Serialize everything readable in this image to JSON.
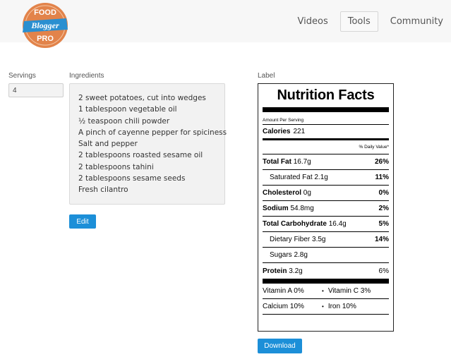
{
  "header": {
    "logo": {
      "line1": "FOOD",
      "line2": "Blogger",
      "line3": "PRO"
    },
    "nav": [
      {
        "label": "Videos",
        "active": false
      },
      {
        "label": "Tools",
        "active": true
      },
      {
        "label": "Community",
        "active": false
      }
    ]
  },
  "servings": {
    "label": "Servings",
    "value": "4"
  },
  "ingredients": {
    "label": "Ingredients",
    "items": [
      "2 sweet potatoes, cut into wedges",
      "1 tablespoon vegetable oil",
      "½ teaspoon chili powder",
      "A pinch of cayenne pepper for spiciness",
      "Salt and pepper",
      "2 tablespoons roasted sesame oil",
      "2 tablespoons tahini",
      "2 tablespoons sesame seeds",
      "Fresh cilantro"
    ],
    "edit_label": "Edit"
  },
  "label_section": {
    "label": "Label",
    "download_label": "Download"
  },
  "nutrition": {
    "title": "Nutrition Facts",
    "amount_per_serving": "Amount Per Serving",
    "calories_label": "Calories",
    "calories_value": "221",
    "daily_value_header": "% Daily Value*",
    "total_fat": {
      "label": "Total Fat",
      "amount": "16.7g",
      "dv": "26%"
    },
    "saturated_fat": {
      "label": "Saturated Fat",
      "amount": "2.1g",
      "dv": "11%"
    },
    "cholesterol": {
      "label": "Cholesterol",
      "amount": "0g",
      "dv": "0%"
    },
    "sodium": {
      "label": "Sodium",
      "amount": "54.8mg",
      "dv": "2%"
    },
    "total_carb": {
      "label": "Total Carbohydrate",
      "amount": "16.4g",
      "dv": "5%"
    },
    "dietary_fiber": {
      "label": "Dietary Fiber",
      "amount": "3.5g",
      "dv": "14%"
    },
    "sugars": {
      "label": "Sugars",
      "amount": "2.8g"
    },
    "protein": {
      "label": "Protein",
      "amount": "3.2g",
      "dv": "6%"
    },
    "vitamin_a": "Vitamin A 0%",
    "vitamin_c": "Vitamin C 3%",
    "calcium": "Calcium 10%",
    "iron": "Iron 10%",
    "bullet": "•"
  },
  "colors": {
    "accent": "#1c8fd8",
    "logo_orange": "#e2834a",
    "logo_blue": "#2a8fd0"
  }
}
